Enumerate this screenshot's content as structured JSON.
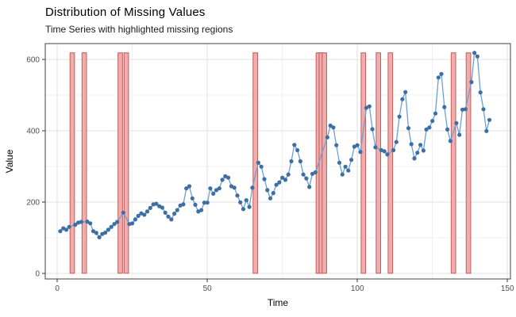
{
  "chart_data": {
    "type": "line",
    "title": "Distribution of Missing Values",
    "subtitle": "Time Series with highlighted missing regions",
    "xlabel": "Time",
    "ylabel": "Value",
    "legend_position": "none",
    "grid": true,
    "x_start": 1,
    "values": [
      118,
      126,
      122,
      130,
      null,
      136,
      142,
      144,
      null,
      145,
      140,
      118,
      113,
      101,
      110,
      114,
      122,
      130,
      138,
      144,
      null,
      170,
      null,
      138,
      140,
      151,
      161,
      168,
      164,
      173,
      183,
      193,
      195,
      188,
      184,
      170,
      159,
      151,
      167,
      177,
      190,
      193,
      238,
      244,
      210,
      192,
      173,
      177,
      198,
      198,
      238,
      223,
      233,
      238,
      262,
      272,
      268,
      244,
      240,
      218,
      199,
      180,
      205,
      186,
      240,
      null,
      310,
      299,
      264,
      233,
      210,
      225,
      248,
      255,
      268,
      262,
      277,
      314,
      360,
      345,
      314,
      277,
      266,
      242,
      279,
      283,
      null,
      null,
      null,
      381,
      414,
      409,
      359,
      310,
      277,
      299,
      288,
      318,
      355,
      359,
      340,
      null,
      464,
      468,
      404,
      353,
      null,
      345,
      342,
      333,
      null,
      345,
      368,
      439,
      488,
      508,
      407,
      362,
      322,
      338,
      360,
      344,
      403,
      409,
      427,
      448,
      549,
      559,
      466,
      403,
      371,
      null,
      421,
      388,
      459,
      460,
      null,
      536,
      618,
      608,
      507,
      460,
      399,
      430
    ],
    "missing_x": [
      5,
      9,
      21,
      23,
      66,
      87,
      88,
      89,
      102,
      107,
      111,
      132,
      137
    ],
    "missing_bar": {
      "half_width": 0.75,
      "y0": 0,
      "y1": 618
    },
    "x_ticks": [
      0,
      50,
      100,
      150
    ],
    "x_minor_ticks": [
      25,
      75,
      125
    ],
    "y_ticks": [
      0,
      200,
      400,
      600
    ],
    "y_minor_ticks": [
      100,
      300,
      500
    ],
    "xlim": [
      -4,
      151
    ],
    "ylim": [
      -16,
      644
    ],
    "colors": {
      "point": "#3e6fa4",
      "line": "#6a9fd8",
      "missing_fill": "#efadac",
      "missing_border": "#c65a5a",
      "grid_major": "#e2e2e2",
      "grid_minor": "#f1f1f1",
      "panel_border": "#404040",
      "tick": "#333333",
      "tick_text": "#4d4d4d",
      "axis_title": "#000000"
    }
  }
}
